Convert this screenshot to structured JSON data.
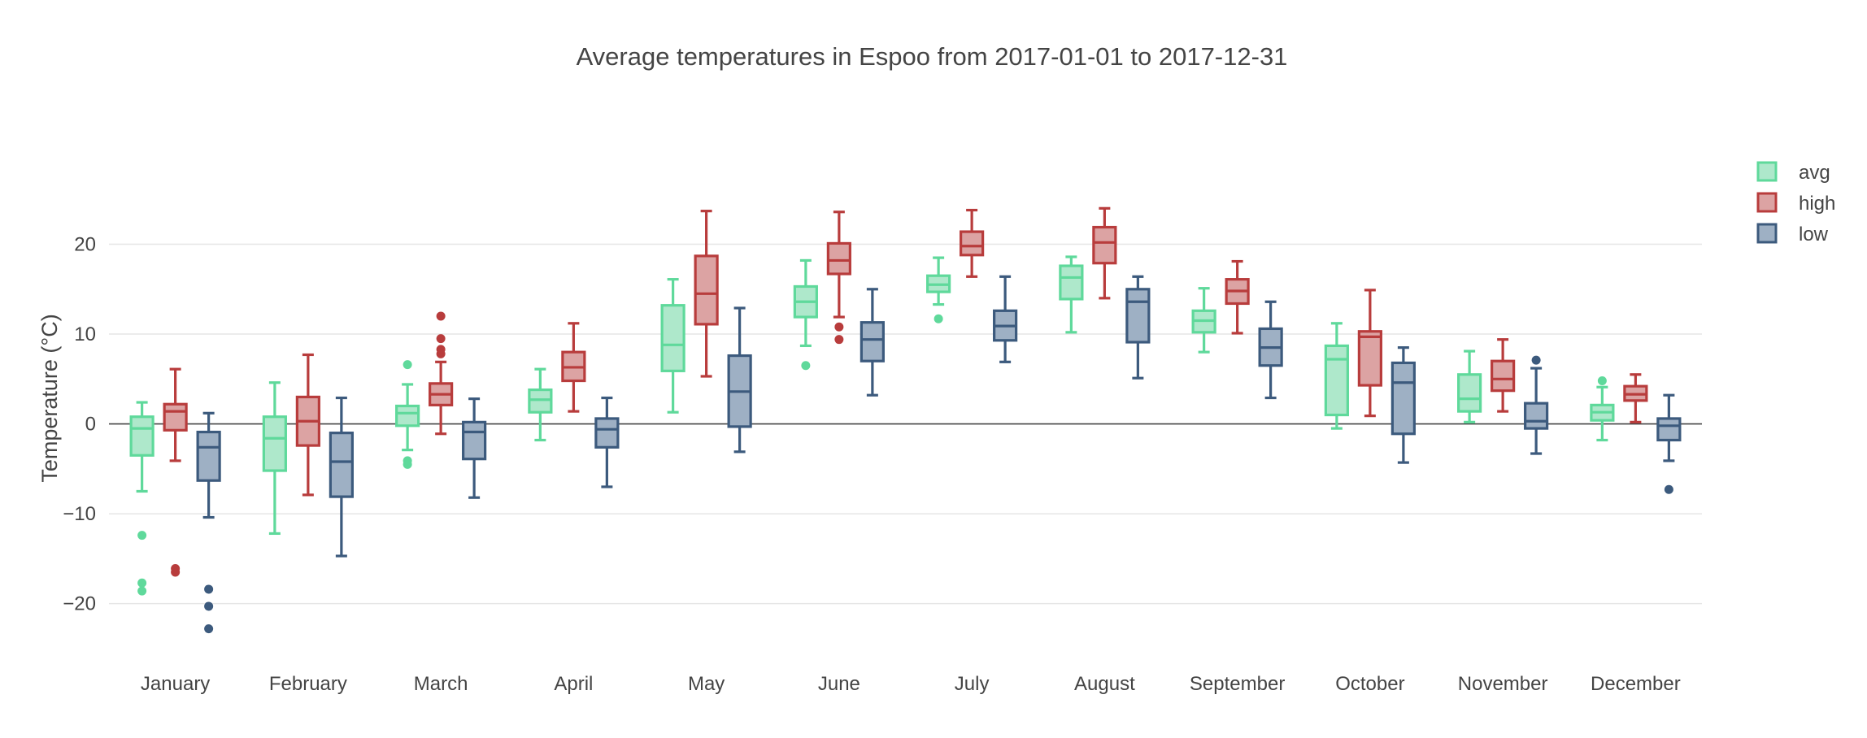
{
  "chart_data": {
    "type": "box",
    "title": "Average temperatures in Espoo from 2017-01-01 to 2017-12-31",
    "xlabel": "",
    "ylabel": "Temperature (°C)",
    "ylim": [
      -27,
      30
    ],
    "yticks": [
      -20,
      -10,
      0,
      10,
      20
    ],
    "ytick_labels": [
      "−20",
      "−10",
      "0",
      "10",
      "20"
    ],
    "grid": true,
    "legend_position": "top-right",
    "categories": [
      "January",
      "February",
      "March",
      "April",
      "May",
      "June",
      "July",
      "August",
      "September",
      "October",
      "November",
      "December"
    ],
    "series": [
      {
        "name": "avg",
        "line_color": "#5fd99b",
        "fill_color": "#aee8cb",
        "boxes": [
          {
            "lowerfence": -7.5,
            "q1": -3.5,
            "median": -0.5,
            "q3": 0.8,
            "upperfence": 2.4,
            "outliers": [
              -12.4,
              -17.7,
              -18.6
            ]
          },
          {
            "lowerfence": -12.2,
            "q1": -5.2,
            "median": -1.6,
            "q3": 0.8,
            "upperfence": 4.6,
            "outliers": []
          },
          {
            "lowerfence": -2.9,
            "q1": -0.2,
            "median": 1.2,
            "q3": 2.0,
            "upperfence": 4.4,
            "outliers": [
              6.6,
              -4.1,
              -4.5
            ]
          },
          {
            "lowerfence": -1.8,
            "q1": 1.3,
            "median": 2.7,
            "q3": 3.8,
            "upperfence": 6.1,
            "outliers": []
          },
          {
            "lowerfence": 1.3,
            "q1": 5.9,
            "median": 8.8,
            "q3": 13.2,
            "upperfence": 16.1,
            "outliers": []
          },
          {
            "lowerfence": 8.7,
            "q1": 11.9,
            "median": 13.6,
            "q3": 15.3,
            "upperfence": 18.2,
            "outliers": [
              6.5
            ]
          },
          {
            "lowerfence": 13.3,
            "q1": 14.7,
            "median": 15.5,
            "q3": 16.5,
            "upperfence": 18.5,
            "outliers": [
              11.7
            ]
          },
          {
            "lowerfence": 10.2,
            "q1": 13.9,
            "median": 16.3,
            "q3": 17.6,
            "upperfence": 18.6,
            "outliers": []
          },
          {
            "lowerfence": 8.0,
            "q1": 10.2,
            "median": 11.5,
            "q3": 12.6,
            "upperfence": 15.1,
            "outliers": []
          },
          {
            "lowerfence": -0.5,
            "q1": 1.0,
            "median": 7.2,
            "q3": 8.7,
            "upperfence": 11.2,
            "outliers": []
          },
          {
            "lowerfence": 0.2,
            "q1": 1.4,
            "median": 2.8,
            "q3": 5.5,
            "upperfence": 8.1,
            "outliers": []
          },
          {
            "lowerfence": -1.8,
            "q1": 0.4,
            "median": 1.3,
            "q3": 2.1,
            "upperfence": 4.1,
            "outliers": [
              4.8
            ]
          }
        ]
      },
      {
        "name": "high",
        "line_color": "#b83c3c",
        "fill_color": "#dca3a3",
        "boxes": [
          {
            "lowerfence": -4.1,
            "q1": -0.7,
            "median": 1.4,
            "q3": 2.2,
            "upperfence": 6.1,
            "outliers": [
              -16.1,
              -16.5
            ]
          },
          {
            "lowerfence": -7.9,
            "q1": -2.4,
            "median": 0.3,
            "q3": 3.0,
            "upperfence": 7.7,
            "outliers": []
          },
          {
            "lowerfence": -1.1,
            "q1": 2.1,
            "median": 3.3,
            "q3": 4.5,
            "upperfence": 6.9,
            "outliers": [
              12.0,
              9.5,
              8.3,
              7.8
            ]
          },
          {
            "lowerfence": 1.4,
            "q1": 4.8,
            "median": 6.3,
            "q3": 8.0,
            "upperfence": 11.2,
            "outliers": []
          },
          {
            "lowerfence": 5.3,
            "q1": 11.1,
            "median": 14.5,
            "q3": 18.7,
            "upperfence": 23.7,
            "outliers": []
          },
          {
            "lowerfence": 11.9,
            "q1": 16.7,
            "median": 18.2,
            "q3": 20.1,
            "upperfence": 23.6,
            "outliers": [
              10.8,
              9.4
            ]
          },
          {
            "lowerfence": 16.4,
            "q1": 18.8,
            "median": 19.8,
            "q3": 21.4,
            "upperfence": 23.8,
            "outliers": []
          },
          {
            "lowerfence": 14.0,
            "q1": 17.9,
            "median": 20.2,
            "q3": 21.9,
            "upperfence": 24.0,
            "outliers": []
          },
          {
            "lowerfence": 10.1,
            "q1": 13.4,
            "median": 14.8,
            "q3": 16.1,
            "upperfence": 18.1,
            "outliers": []
          },
          {
            "lowerfence": 0.9,
            "q1": 4.3,
            "median": 9.7,
            "q3": 10.3,
            "upperfence": 14.9,
            "outliers": []
          },
          {
            "lowerfence": 1.4,
            "q1": 3.7,
            "median": 5.0,
            "q3": 7.0,
            "upperfence": 9.4,
            "outliers": []
          },
          {
            "lowerfence": 0.2,
            "q1": 2.6,
            "median": 3.3,
            "q3": 4.2,
            "upperfence": 5.5,
            "outliers": []
          }
        ]
      },
      {
        "name": "low",
        "line_color": "#3c5a7d",
        "fill_color": "#9eb0c4",
        "boxes": [
          {
            "lowerfence": -10.4,
            "q1": -6.3,
            "median": -2.6,
            "q3": -0.9,
            "upperfence": 1.2,
            "outliers": [
              -18.4,
              -20.3,
              -22.8
            ]
          },
          {
            "lowerfence": -14.7,
            "q1": -8.1,
            "median": -4.2,
            "q3": -1.0,
            "upperfence": 2.9,
            "outliers": []
          },
          {
            "lowerfence": -8.2,
            "q1": -3.9,
            "median": -0.9,
            "q3": 0.2,
            "upperfence": 2.8,
            "outliers": []
          },
          {
            "lowerfence": -7.0,
            "q1": -2.6,
            "median": -0.6,
            "q3": 0.6,
            "upperfence": 2.9,
            "outliers": []
          },
          {
            "lowerfence": -3.1,
            "q1": -0.3,
            "median": 3.6,
            "q3": 7.6,
            "upperfence": 12.9,
            "outliers": []
          },
          {
            "lowerfence": 3.2,
            "q1": 7.0,
            "median": 9.4,
            "q3": 11.3,
            "upperfence": 15.0,
            "outliers": []
          },
          {
            "lowerfence": 6.9,
            "q1": 9.3,
            "median": 10.9,
            "q3": 12.6,
            "upperfence": 16.4,
            "outliers": []
          },
          {
            "lowerfence": 5.1,
            "q1": 9.1,
            "median": 13.6,
            "q3": 15.0,
            "upperfence": 16.4,
            "outliers": []
          },
          {
            "lowerfence": 2.9,
            "q1": 6.5,
            "median": 8.5,
            "q3": 10.6,
            "upperfence": 13.6,
            "outliers": []
          },
          {
            "lowerfence": -4.3,
            "q1": -1.1,
            "median": 4.6,
            "q3": 6.8,
            "upperfence": 8.5,
            "outliers": []
          },
          {
            "lowerfence": -3.3,
            "q1": -0.5,
            "median": 0.3,
            "q3": 2.3,
            "upperfence": 6.2,
            "outliers": [
              7.1
            ]
          },
          {
            "lowerfence": -4.1,
            "q1": -1.8,
            "median": -0.2,
            "q3": 0.6,
            "upperfence": 3.2,
            "outliers": [
              -7.3
            ]
          }
        ]
      }
    ]
  }
}
